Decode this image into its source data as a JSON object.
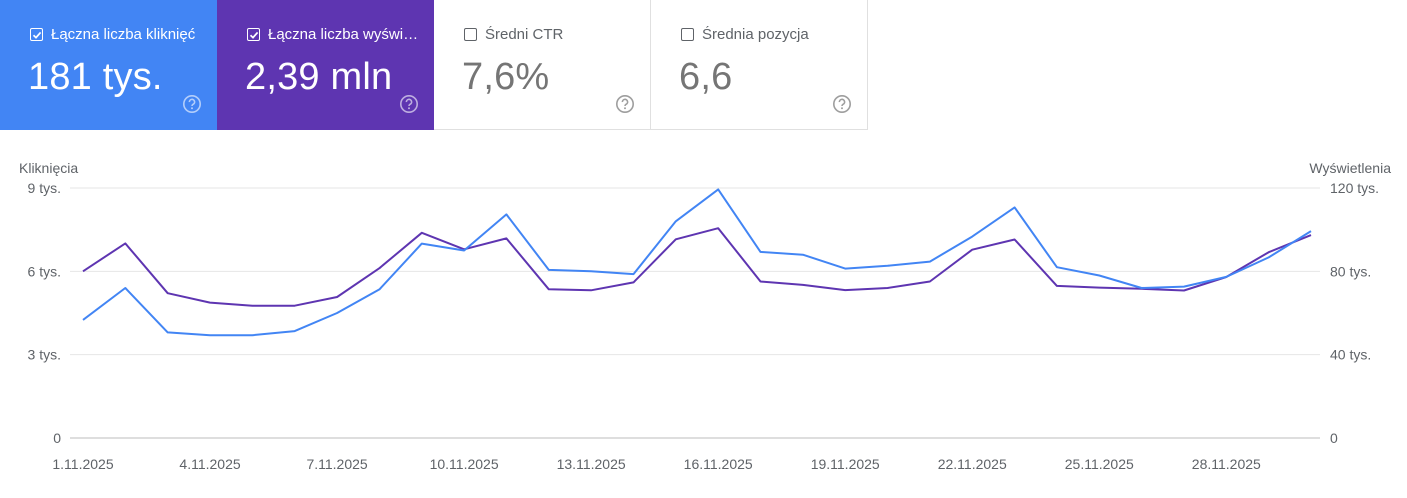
{
  "cards": [
    {
      "label": "Łączna liczba kliknięć",
      "value": "181 tys.",
      "checked": true,
      "color": "#4285f4"
    },
    {
      "label": "Łączna liczba wyświetleń",
      "value": "2,39 mln",
      "checked": true,
      "color": "#5e35b1"
    },
    {
      "label": "Średni CTR",
      "value": "7,6%",
      "checked": false
    },
    {
      "label": "Średnia pozycja",
      "value": "6,6",
      "checked": false
    }
  ],
  "icons": {
    "help": "help-circle-icon",
    "checkbox_checked": "checkbox-checked-icon",
    "checkbox_unchecked": "checkbox-unchecked-icon"
  },
  "chart_data": {
    "type": "line",
    "left_axis_label": "Kliknięcia",
    "right_axis_label": "Wyświetlenia",
    "left_ticks": [
      "9 tys.",
      "6 tys.",
      "3 tys.",
      "0"
    ],
    "right_ticks": [
      "120 tys.",
      "80 tys.",
      "40 tys.",
      "0"
    ],
    "left_ylim": [
      0,
      9000
    ],
    "right_ylim": [
      0,
      120000
    ],
    "grid": true,
    "x_tick_labels": [
      "1.11.2025",
      "4.11.2025",
      "7.11.2025",
      "10.11.2025",
      "13.11.2025",
      "16.11.2025",
      "19.11.2025",
      "22.11.2025",
      "25.11.2025",
      "28.11.2025"
    ],
    "x_tick_indices": [
      0,
      3,
      6,
      9,
      12,
      15,
      18,
      21,
      24,
      27
    ],
    "series": [
      {
        "name": "Kliknięcia",
        "axis": "left",
        "color": "#4285f4",
        "values": [
          4250,
          5400,
          3800,
          3700,
          3700,
          3850,
          4500,
          5350,
          7000,
          6750,
          8050,
          6050,
          6000,
          5900,
          7800,
          8950,
          6700,
          6600,
          6100,
          6200,
          6350,
          7250,
          8300,
          6150,
          5850,
          5400,
          5450,
          5800,
          6500,
          7450
        ]
      },
      {
        "name": "Wyświetlenia",
        "axis": "right",
        "color": "#5e35b1",
        "values": [
          80000,
          93400,
          69500,
          65000,
          63500,
          63500,
          67700,
          81500,
          98500,
          90600,
          95800,
          71400,
          70900,
          74700,
          95400,
          100700,
          75100,
          73500,
          71000,
          72000,
          75100,
          90400,
          95300,
          73000,
          72200,
          71600,
          70800,
          77300,
          89200,
          97400
        ]
      }
    ]
  }
}
